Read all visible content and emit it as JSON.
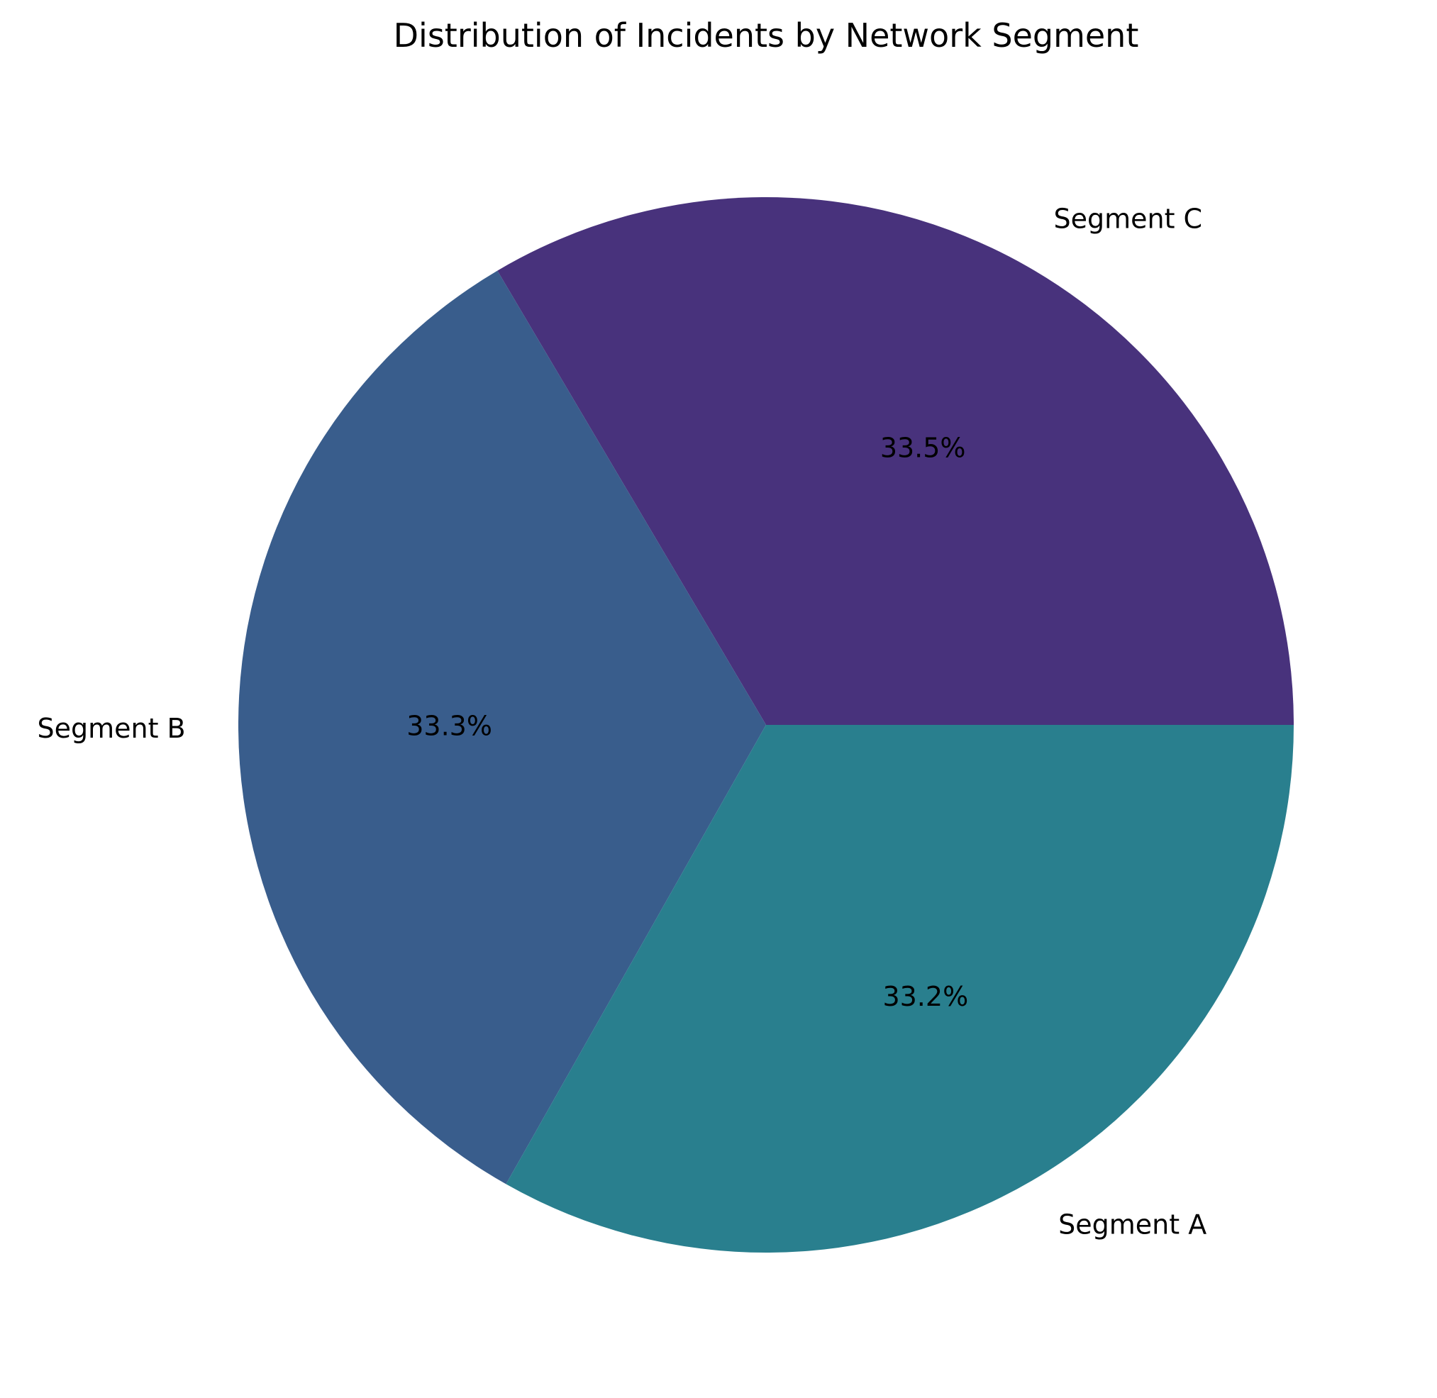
{
  "chart_data": {
    "type": "pie",
    "title": "Distribution of Incidents by Network Segment",
    "start_angle_deg": 0,
    "direction": "counterclockwise",
    "slices": [
      {
        "label": "Segment C",
        "percent": 33.5,
        "percent_label": "33.5%",
        "color": "#48327c"
      },
      {
        "label": "Segment B",
        "percent": 33.3,
        "percent_label": "33.3%",
        "color": "#395d8c"
      },
      {
        "label": "Segment A",
        "percent": 33.2,
        "percent_label": "33.2%",
        "color": "#297f8e"
      }
    ]
  }
}
